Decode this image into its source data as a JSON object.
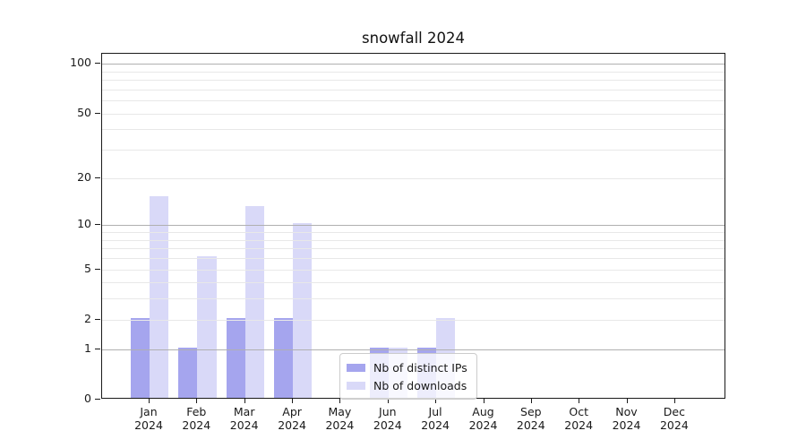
{
  "chart_data": {
    "type": "bar",
    "title": "snowfall 2024",
    "y_scale": "log1p",
    "categories": [
      "Jan",
      "Feb",
      "Mar",
      "Apr",
      "May",
      "Jun",
      "Jul",
      "Aug",
      "Sep",
      "Oct",
      "Nov",
      "Dec"
    ],
    "category_year": "2024",
    "series": [
      {
        "name": "Nb of distinct IPs",
        "color": "#a5a5ee",
        "values": [
          2,
          1,
          2,
          2,
          0,
          1,
          1,
          0,
          0,
          0,
          0,
          0
        ]
      },
      {
        "name": "Nb of downloads",
        "color": "#d9d9f8",
        "values": [
          15,
          6,
          13,
          10,
          0,
          1,
          2,
          0,
          0,
          0,
          0,
          0
        ]
      }
    ],
    "y_ticks": [
      0,
      1,
      2,
      5,
      10,
      20,
      50,
      100
    ],
    "major_gridlines": [
      1,
      10,
      100
    ],
    "minor_gridlines": [
      2,
      3,
      4,
      5,
      6,
      7,
      8,
      9,
      20,
      30,
      40,
      50,
      60,
      70,
      80,
      90
    ],
    "legend": {
      "entries": [
        "Nb of distinct IPs",
        "Nb of downloads"
      ],
      "position": "lower center"
    },
    "grid": "horizontal",
    "colors": {
      "major_grid": "#b0b0b0",
      "minor_grid": "#e8e8e8",
      "spine": "#1a1a1a",
      "text": "#1a1a1a"
    }
  }
}
